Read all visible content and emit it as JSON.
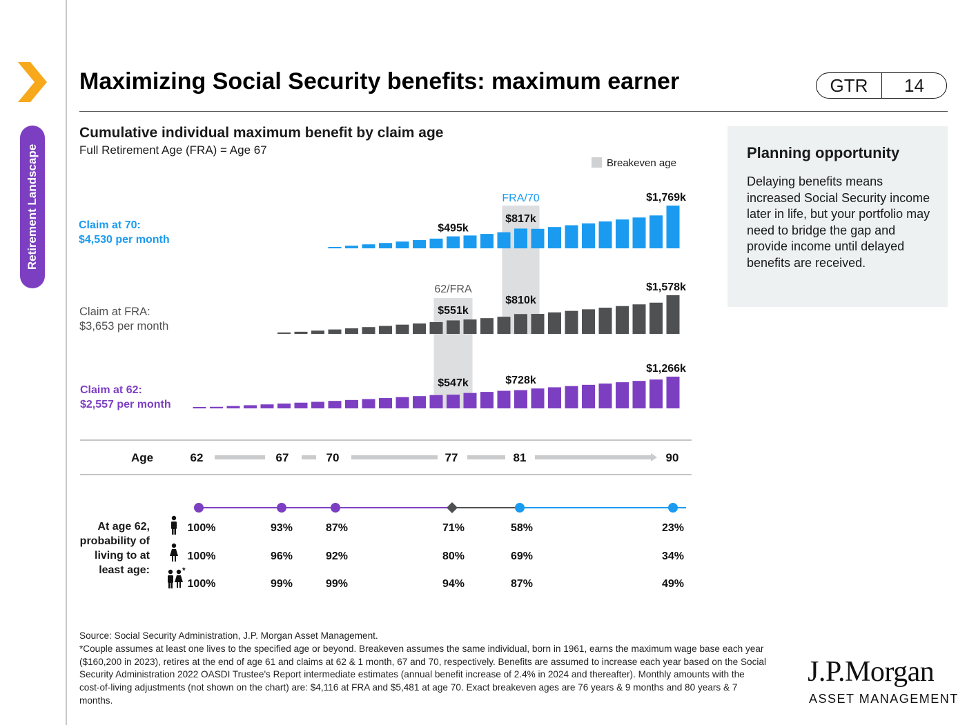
{
  "page": {
    "title": "Maximizing Social Security benefits: maximum earner",
    "badge_left": "GTR",
    "badge_right": "14",
    "side_tab": "Retirement Landscape"
  },
  "planning": {
    "heading": "Planning opportunity",
    "body": "Delaying benefits means increased Social Security income later in life, but your portfolio may need to bridge the gap and provide income until delayed benefits are received."
  },
  "footer": {
    "source": "Source: Social Security Administration, J.P. Morgan Asset Management.",
    "note": "*Couple assumes at least one lives to the specified age or beyond. Breakeven assumes the same individual, born in 1961, earns the maximum wage base each year ($160,200 in 2023), retires at the end of age 61 and claims at 62 & 1 month, 67 and 70, respectively. Benefits are assumed to increase each year based on the Social Security Administration 2022 OASDI Trustee's Report intermediate estimates (annual benefit increase of 2.4% in 2024 and thereafter). Monthly amounts with the cost-of-living adjustments (not shown on the chart) are: $4,116 at FRA and $5,481 at age 70. Exact breakeven ages are 76 years & 9 months and 80 years & 7 months."
  },
  "logo": {
    "main": "J.P.Morgan",
    "sub": "ASSET MANAGEMENT"
  },
  "colors": {
    "claim70": "#1a9bf0",
    "claimFRA": "#4f5052",
    "claim62": "#7d3fc2",
    "breakeven": "#dcdedf",
    "accent": "#f7a81b"
  },
  "chart_data": {
    "type": "bar",
    "title": "Cumulative individual maximum benefit by claim age",
    "subtitle": "Full Retirement Age (FRA) = Age 67",
    "legend": [
      {
        "label": "Breakeven age",
        "color": "#cfd1d3"
      }
    ],
    "x": [
      62,
      63,
      64,
      65,
      66,
      67,
      68,
      69,
      70,
      71,
      72,
      73,
      74,
      75,
      76,
      77,
      78,
      79,
      80,
      81,
      82,
      83,
      84,
      85,
      86,
      87,
      88,
      89,
      90
    ],
    "units": "$k",
    "series": [
      {
        "name_line1": "Claim at 70:",
        "name_line2": "$4,530 per month",
        "color": "#1a9bf0",
        "values": [
          null,
          null,
          null,
          null,
          null,
          null,
          null,
          null,
          54,
          109,
          165,
          222,
          281,
          341,
          402,
          495,
          531,
          597,
          665,
          817,
          806,
          880,
          955,
          1033,
          1112,
          1193,
          1276,
          1361,
          1769
        ],
        "labels": [
          {
            "x": 77,
            "text": "$495k"
          },
          {
            "x": 81,
            "text": "$817k"
          },
          {
            "x": 90,
            "text": "$1,769k"
          }
        ]
      },
      {
        "name_line1": "Claim at FRA:",
        "name_line2": "$3,653 per month",
        "color": "#4f5052",
        "values": [
          null,
          null,
          null,
          null,
          null,
          44,
          88,
          133,
          180,
          227,
          276,
          325,
          376,
          427,
          480,
          551,
          587,
          643,
          699,
          810,
          816,
          877,
          940,
          1004,
          1070,
          1136,
          1205,
          1275,
          1578
        ],
        "labels": [
          {
            "x": 77,
            "text": "$551k"
          },
          {
            "x": 81,
            "text": "$810k"
          },
          {
            "x": 90,
            "text": "$1,578k"
          }
        ]
      },
      {
        "name_line1": "Claim at 62:",
        "name_line2": "$2,557 per month",
        "color": "#7d3fc2",
        "values": [
          31,
          62,
          94,
          126,
          159,
          193,
          227,
          262,
          298,
          335,
          372,
          411,
          450,
          490,
          531,
          547,
          615,
          658,
          702,
          728,
          794,
          841,
          890,
          940,
          991,
          1043,
          1096,
          1151,
          1266
        ],
        "labels": [
          {
            "x": 77,
            "text": "$547k"
          },
          {
            "x": 81,
            "text": "$728k"
          },
          {
            "x": 90,
            "text": "$1,266k"
          }
        ]
      }
    ],
    "annotations": [
      {
        "text": "FRA/70",
        "x": 81,
        "series": 0
      },
      {
        "text": "62/FRA",
        "x": 77,
        "series": 1
      }
    ],
    "breakeven_ages": [
      77,
      81
    ],
    "age_axis": {
      "label": "Age",
      "ticks": [
        "62",
        "67",
        "70",
        "77",
        "81",
        "90"
      ]
    },
    "probability": {
      "label": "At age 62, probability of living to at least age:",
      "marker_ages": [
        "62",
        "67",
        "70",
        "77",
        "81",
        "90"
      ],
      "rows": [
        {
          "icon": "man-icon",
          "values": [
            "100%",
            "93%",
            "87%",
            "71%",
            "58%",
            "23%"
          ]
        },
        {
          "icon": "woman-icon",
          "values": [
            "100%",
            "96%",
            "92%",
            "80%",
            "69%",
            "34%"
          ]
        },
        {
          "icon": "couple-icon",
          "values": [
            "100%",
            "99%",
            "99%",
            "94%",
            "87%",
            "49%"
          ]
        }
      ]
    }
  }
}
